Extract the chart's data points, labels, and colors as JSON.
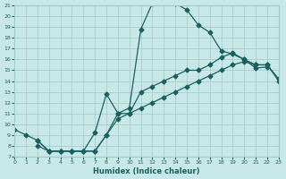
{
  "title": "",
  "xlabel": "Humidex (Indice chaleur)",
  "ylabel": "",
  "xlim": [
    0,
    23
  ],
  "ylim": [
    7,
    21
  ],
  "yticks": [
    7,
    8,
    9,
    10,
    11,
    12,
    13,
    14,
    15,
    16,
    17,
    18,
    19,
    20,
    21
  ],
  "xticks": [
    0,
    1,
    2,
    3,
    4,
    5,
    6,
    7,
    8,
    9,
    10,
    11,
    12,
    13,
    14,
    15,
    16,
    17,
    18,
    19,
    20,
    21,
    22,
    23
  ],
  "background_color": "#c8e8e8",
  "grid_color": "#a0c8c8",
  "line_color": "#1a6060",
  "line1_x": [
    0,
    1,
    2,
    3,
    4,
    5,
    6,
    7,
    8,
    9,
    10,
    11,
    12,
    13,
    14,
    15,
    16,
    17,
    18,
    19,
    20,
    21,
    22
  ],
  "line1_y": [
    9.5,
    9.0,
    8.5,
    7.5,
    7.5,
    7.5,
    7.5,
    7.5,
    9.0,
    11.0,
    11.5,
    18.8,
    21.2,
    21.3,
    21.2,
    20.6,
    19.2,
    18.5,
    16.8,
    16.5,
    16.0,
    15.2,
    15.3
  ],
  "line2_x": [
    2,
    3,
    4,
    5,
    6,
    7,
    8,
    9,
    10,
    11,
    12,
    13,
    14,
    15,
    16,
    17,
    18,
    19,
    20,
    21,
    22,
    23
  ],
  "line2_y": [
    8.0,
    7.5,
    7.5,
    7.5,
    7.5,
    9.2,
    12.8,
    11.0,
    11.0,
    13.0,
    13.5,
    14.0,
    14.5,
    15.0,
    15.0,
    15.5,
    16.2,
    16.6,
    16.0,
    15.5,
    15.5,
    14.2
  ],
  "line3_x": [
    2,
    3,
    4,
    5,
    6,
    7,
    8,
    9,
    10,
    11,
    12,
    13,
    14,
    15,
    16,
    17,
    18,
    19,
    20,
    21,
    22,
    23
  ],
  "line3_y": [
    8.5,
    7.5,
    7.5,
    7.5,
    7.5,
    7.5,
    9.0,
    10.5,
    11.0,
    11.5,
    12.0,
    12.5,
    13.0,
    13.5,
    14.0,
    14.5,
    15.0,
    15.5,
    15.8,
    15.5,
    15.5,
    14.0
  ]
}
